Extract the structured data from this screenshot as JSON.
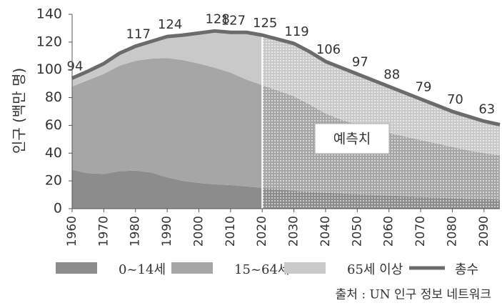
{
  "chart_data": {
    "type": "stacked_area",
    "y_label": "인구 (백만 명)",
    "source": "출처 : UN 인구 정보 네트워크",
    "annotation": "예측치",
    "forecast_start": 2020,
    "x": [
      1960,
      1965,
      1970,
      1975,
      1980,
      1985,
      1990,
      1995,
      2000,
      2005,
      2010,
      2015,
      2020,
      2025,
      2030,
      2035,
      2040,
      2045,
      2050,
      2055,
      2060,
      2065,
      2070,
      2075,
      2080,
      2085,
      2090,
      2095
    ],
    "series": [
      {
        "name": "0~14세",
        "color": "#8c8c8c",
        "values": [
          28,
          25.5,
          25,
          27,
          27.5,
          26,
          22.5,
          20,
          18.5,
          17.5,
          17,
          16,
          15,
          14,
          13,
          12,
          11.5,
          11,
          10.5,
          10,
          9.5,
          9,
          8.5,
          8,
          7.5,
          7,
          7,
          6.5
        ]
      },
      {
        "name": "15~64세",
        "color": "#a6a6a6",
        "values": [
          60,
          67,
          72,
          76,
          79,
          82,
          86,
          87,
          86,
          84,
          81,
          77,
          74,
          71,
          68,
          63,
          57,
          53,
          50,
          47,
          45,
          43,
          41,
          39,
          37,
          35,
          33,
          32
        ]
      },
      {
        "name": "65세 이상",
        "color": "#c9c9c9",
        "values": [
          6,
          6.5,
          7.5,
          9,
          10.5,
          12.5,
          15.5,
          18,
          22,
          26.5,
          29,
          34,
          36,
          37,
          38,
          38,
          37.5,
          37.5,
          36.5,
          35.5,
          33.5,
          31.5,
          29.5,
          27.5,
          25.5,
          24.5,
          23,
          22
        ]
      },
      {
        "name": "총수",
        "color": "#6b6b6b",
        "type": "line",
        "values": [
          94,
          99,
          104.5,
          112,
          117,
          120.5,
          124,
          125,
          126.5,
          128,
          127,
          127,
          125,
          122,
          119,
          113,
          106,
          101.5,
          97,
          92.5,
          88,
          83.5,
          79,
          74.5,
          70,
          66.5,
          63,
          60.5
        ],
        "value_labels": [
          "94",
          null,
          null,
          null,
          "117",
          null,
          "124",
          null,
          null,
          "128",
          "127",
          null,
          "125",
          null,
          "119",
          null,
          "106",
          null,
          "97",
          null,
          "88",
          null,
          "79",
          null,
          "70",
          null,
          "63",
          null
        ]
      }
    ],
    "xlim": [
      1960,
      2095
    ],
    "ylim": [
      0,
      140
    ],
    "xticks": [
      1960,
      1970,
      1980,
      1990,
      2000,
      2010,
      2020,
      2030,
      2040,
      2050,
      2060,
      2070,
      2080,
      2090
    ],
    "yticks": [
      0,
      20,
      40,
      60,
      80,
      100,
      120,
      140
    ]
  }
}
